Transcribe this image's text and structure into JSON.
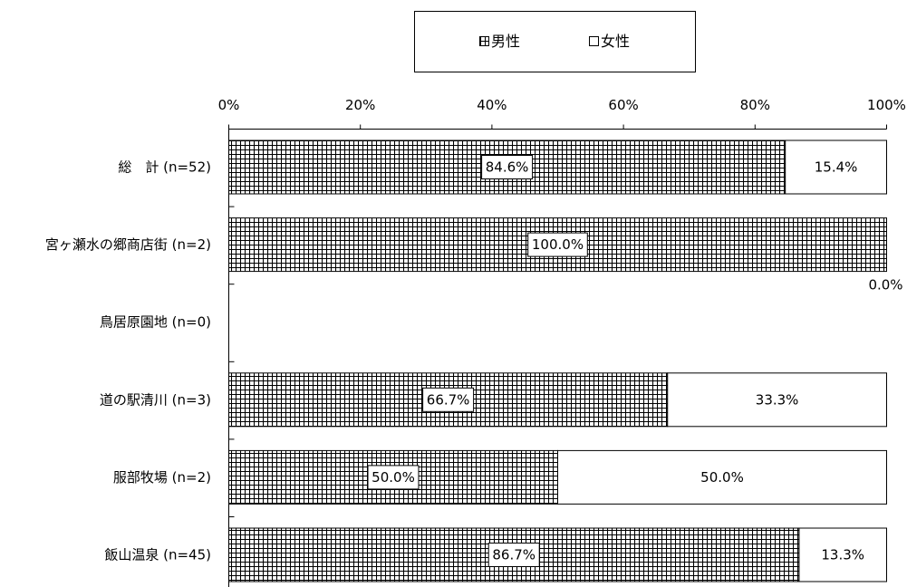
{
  "chart_data": {
    "type": "bar",
    "orientation": "horizontal",
    "stacked": true,
    "percent_stacked": true,
    "categories": [
      "総　計 (n=52)",
      "宮ヶ瀬水の郷商店街 (n=2)",
      "鳥居原園地 (n=0)",
      "道の駅清川 (n=3)",
      "服部牧場 (n=2)",
      "飯山温泉 (n=45)"
    ],
    "series": [
      {
        "name": "男性",
        "values": [
          84.6,
          100.0,
          null,
          66.7,
          50.0,
          86.7
        ],
        "pattern": "crosshatch"
      },
      {
        "name": "女性",
        "values": [
          15.4,
          0.0,
          null,
          33.3,
          50.0,
          13.3
        ],
        "pattern": "white"
      }
    ],
    "data_labels": [
      [
        "84.6%",
        "100.0%",
        "",
        "66.7%",
        "50.0%",
        "86.7%"
      ],
      [
        "15.4%",
        "0.0%",
        "",
        "33.3%",
        "50.0%",
        "13.3%"
      ]
    ],
    "x_ticks": [
      "0%",
      "20%",
      "40%",
      "60%",
      "80%",
      "100%"
    ],
    "xlim": [
      0,
      100
    ],
    "x_axis_position": "top",
    "legend_position": "top",
    "grid": false,
    "colors": {
      "bar_outline": "#000000",
      "hatch": "#000000",
      "background": "#ffffff"
    }
  }
}
